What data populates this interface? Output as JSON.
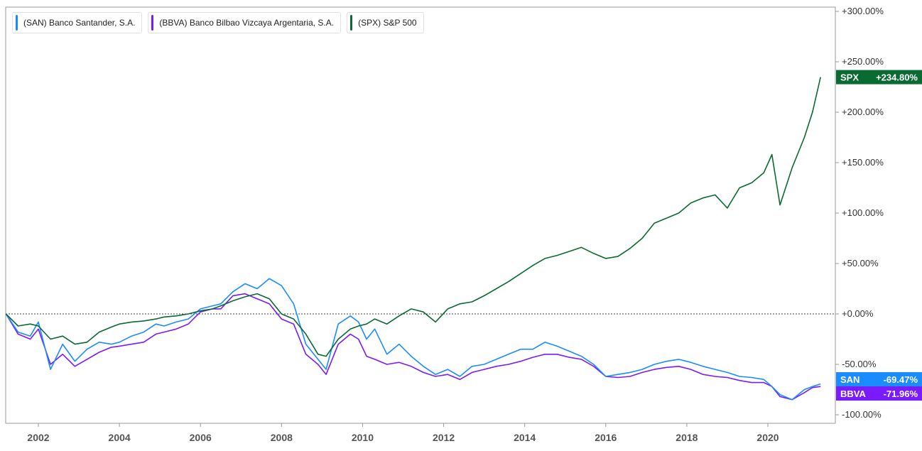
{
  "chart_data": {
    "type": "line",
    "y_unit": "%",
    "x_ticks": [
      "2002",
      "2004",
      "2006",
      "2008",
      "2010",
      "2012",
      "2014",
      "2016",
      "2018",
      "2020"
    ],
    "y_ticks": [
      "+300.00%",
      "+250.00%",
      "+200.00%",
      "+150.00%",
      "+100.00%",
      "+50.00%",
      "+0.00%",
      "-50.00%",
      "-100.00%"
    ],
    "ylim": [
      -100,
      300
    ],
    "xlim": [
      2001.2,
      2021.3
    ],
    "grid": false,
    "legend_position": "top-left",
    "series": [
      {
        "name": "(SAN) Banco Santander, S.A.",
        "ticker": "SAN",
        "last_label": "-69.47%",
        "color": "#1a8cff",
        "x": [
          2001.2,
          2001.5,
          2001.8,
          2002.0,
          2002.3,
          2002.6,
          2002.9,
          2003.2,
          2003.5,
          2003.8,
          2004.0,
          2004.3,
          2004.6,
          2004.9,
          2005.1,
          2005.4,
          2005.7,
          2006.0,
          2006.3,
          2006.5,
          2006.8,
          2007.1,
          2007.4,
          2007.7,
          2008.0,
          2008.3,
          2008.6,
          2008.9,
          2009.1,
          2009.4,
          2009.7,
          2009.9,
          2010.1,
          2010.3,
          2010.6,
          2010.9,
          2011.2,
          2011.5,
          2011.8,
          2012.1,
          2012.4,
          2012.7,
          2013.0,
          2013.3,
          2013.6,
          2013.9,
          2014.2,
          2014.5,
          2014.8,
          2015.1,
          2015.4,
          2015.7,
          2016.0,
          2016.3,
          2016.6,
          2016.9,
          2017.2,
          2017.5,
          2017.8,
          2018.1,
          2018.4,
          2018.7,
          2019.0,
          2019.3,
          2019.6,
          2019.9,
          2020.1,
          2020.3,
          2020.6,
          2020.9,
          2021.1,
          2021.3
        ],
        "y": [
          0,
          -18,
          -22,
          -8,
          -55,
          -30,
          -47,
          -35,
          -28,
          -30,
          -28,
          -22,
          -18,
          -10,
          -12,
          -8,
          -5,
          5,
          8,
          10,
          22,
          30,
          25,
          35,
          28,
          10,
          -30,
          -45,
          -55,
          -10,
          -2,
          -8,
          -25,
          -15,
          -40,
          -30,
          -42,
          -52,
          -60,
          -55,
          -62,
          -52,
          -50,
          -45,
          -40,
          -35,
          -35,
          -28,
          -32,
          -37,
          -42,
          -50,
          -62,
          -60,
          -58,
          -55,
          -50,
          -47,
          -45,
          -48,
          -52,
          -55,
          -58,
          -62,
          -63,
          -65,
          -72,
          -80,
          -85,
          -75,
          -72,
          -69.47
        ]
      },
      {
        "name": "(BBVA) Banco Bilbao Vizcaya Argentaria, S.A.",
        "ticker": "BBVA",
        "last_label": "-71.96%",
        "color": "#7a1aff",
        "x": [
          2001.2,
          2001.5,
          2001.8,
          2002.0,
          2002.3,
          2002.6,
          2002.9,
          2003.2,
          2003.5,
          2003.8,
          2004.0,
          2004.3,
          2004.6,
          2004.9,
          2005.1,
          2005.4,
          2005.7,
          2006.0,
          2006.3,
          2006.5,
          2006.8,
          2007.1,
          2007.4,
          2007.7,
          2008.0,
          2008.3,
          2008.6,
          2008.9,
          2009.1,
          2009.4,
          2009.7,
          2009.9,
          2010.1,
          2010.3,
          2010.6,
          2010.9,
          2011.2,
          2011.5,
          2011.8,
          2012.1,
          2012.4,
          2012.7,
          2013.0,
          2013.3,
          2013.6,
          2013.9,
          2014.2,
          2014.5,
          2014.8,
          2015.1,
          2015.4,
          2015.7,
          2016.0,
          2016.3,
          2016.6,
          2016.9,
          2017.2,
          2017.5,
          2017.8,
          2018.1,
          2018.4,
          2018.7,
          2019.0,
          2019.3,
          2019.6,
          2019.9,
          2020.1,
          2020.3,
          2020.6,
          2020.9,
          2021.1,
          2021.3
        ],
        "y": [
          0,
          -20,
          -25,
          -15,
          -50,
          -40,
          -52,
          -45,
          -38,
          -33,
          -32,
          -30,
          -28,
          -20,
          -18,
          -15,
          -10,
          2,
          5,
          5,
          18,
          20,
          15,
          10,
          -5,
          -10,
          -40,
          -50,
          -60,
          -30,
          -20,
          -25,
          -42,
          -45,
          -50,
          -48,
          -52,
          -58,
          -62,
          -60,
          -65,
          -58,
          -55,
          -52,
          -50,
          -47,
          -43,
          -40,
          -40,
          -43,
          -45,
          -52,
          -62,
          -63,
          -62,
          -58,
          -55,
          -53,
          -52,
          -55,
          -60,
          -62,
          -63,
          -66,
          -68,
          -68,
          -72,
          -82,
          -85,
          -78,
          -73,
          -71.96
        ]
      },
      {
        "name": "(SPX) S&P 500",
        "ticker": "SPX",
        "last_label": "+234.80%",
        "color": "#0a6b32",
        "x": [
          2001.2,
          2001.5,
          2001.8,
          2002.0,
          2002.3,
          2002.6,
          2002.9,
          2003.2,
          2003.5,
          2003.8,
          2004.0,
          2004.3,
          2004.6,
          2004.9,
          2005.1,
          2005.4,
          2005.7,
          2006.0,
          2006.3,
          2006.5,
          2006.8,
          2007.1,
          2007.4,
          2007.7,
          2008.0,
          2008.3,
          2008.6,
          2008.9,
          2009.1,
          2009.4,
          2009.7,
          2009.9,
          2010.1,
          2010.3,
          2010.6,
          2010.9,
          2011.2,
          2011.5,
          2011.8,
          2012.1,
          2012.4,
          2012.7,
          2013.0,
          2013.3,
          2013.6,
          2013.9,
          2014.2,
          2014.5,
          2014.8,
          2015.1,
          2015.4,
          2015.7,
          2016.0,
          2016.3,
          2016.6,
          2016.9,
          2017.2,
          2017.5,
          2017.8,
          2018.1,
          2018.4,
          2018.7,
          2019.0,
          2019.3,
          2019.6,
          2019.9,
          2020.1,
          2020.3,
          2020.6,
          2020.9,
          2021.1,
          2021.3
        ],
        "y": [
          0,
          -12,
          -10,
          -12,
          -25,
          -22,
          -30,
          -28,
          -18,
          -13,
          -10,
          -8,
          -7,
          -5,
          -3,
          -2,
          0,
          3,
          5,
          8,
          13,
          17,
          20,
          15,
          0,
          -5,
          -20,
          -40,
          -42,
          -25,
          -15,
          -12,
          -10,
          -5,
          -10,
          -2,
          5,
          2,
          -8,
          5,
          10,
          12,
          18,
          25,
          32,
          40,
          48,
          55,
          58,
          62,
          66,
          60,
          55,
          57,
          65,
          75,
          90,
          95,
          100,
          110,
          115,
          118,
          105,
          125,
          130,
          140,
          158,
          108,
          145,
          175,
          200,
          234.8
        ]
      }
    ]
  }
}
